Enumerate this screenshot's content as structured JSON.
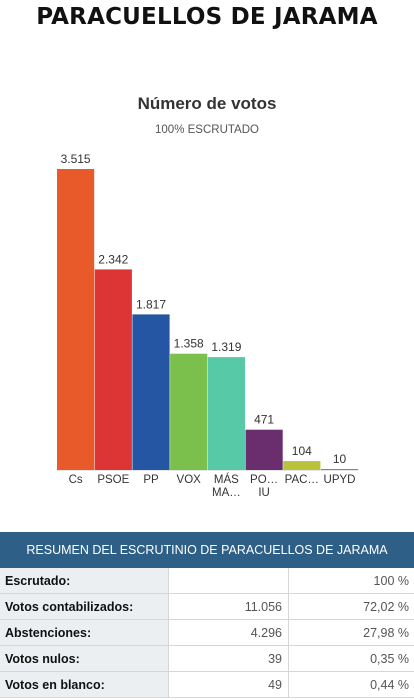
{
  "page": {
    "title": "PARACUELLOS DE JARAMA"
  },
  "chart_data": {
    "type": "bar",
    "title": "Número de votos",
    "subtitle": "100% ESCRUTADO",
    "categories": [
      "Cs",
      "PSOE",
      "PP",
      "VOX",
      "MÁS MA…",
      "PO… IU",
      "PAC…",
      "UPYD"
    ],
    "category_lines": [
      [
        "Cs"
      ],
      [
        "PSOE"
      ],
      [
        "PP"
      ],
      [
        "VOX"
      ],
      [
        "MÁS",
        "MA…"
      ],
      [
        "PO…",
        "IU"
      ],
      [
        "PAC…"
      ],
      [
        "UPYD"
      ]
    ],
    "values": [
      3515,
      2342,
      1817,
      1358,
      1319,
      471,
      104,
      10
    ],
    "value_labels": [
      "3.515",
      "2.342",
      "1.817",
      "1.358",
      "1.319",
      "471",
      "104",
      "10"
    ],
    "colors": [
      "#e85a2a",
      "#dd3535",
      "#2456a4",
      "#7bbf4c",
      "#58c9a6",
      "#6a2d6e",
      "#b8c23a",
      "#e0559a"
    ],
    "ylim": [
      0,
      3515
    ],
    "grid": false,
    "legend": "none",
    "xlabel": "",
    "ylabel": ""
  },
  "summary": {
    "header": "RESUMEN DEL ESCRUTINIO DE PARACUELLOS DE JARAMA",
    "rows": [
      {
        "label": "Escrutado:",
        "value": "",
        "pct": "100 %"
      },
      {
        "label": "Votos contabilizados:",
        "value": "11.056",
        "pct": "72,02 %"
      },
      {
        "label": "Abstenciones:",
        "value": "4.296",
        "pct": "27,98 %"
      },
      {
        "label": "Votos nulos:",
        "value": "39",
        "pct": "0,35 %"
      },
      {
        "label": "Votos en blanco:",
        "value": "49",
        "pct": "0,44 %"
      }
    ]
  }
}
